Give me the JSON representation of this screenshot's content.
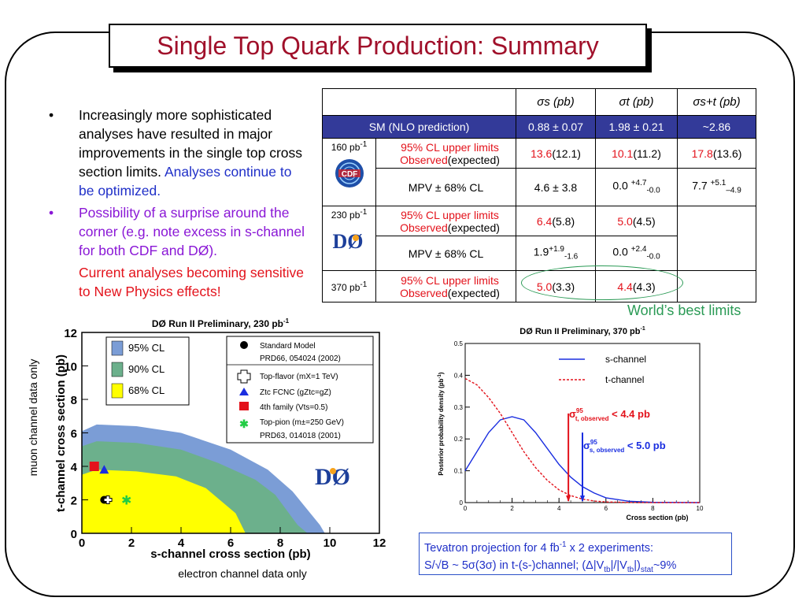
{
  "title": "Single Top Quark Production: Summary",
  "bullets": {
    "b1_black": "Increasingly more sophisticated analyses have resulted in major improvements in the single top cross section limits.",
    "b1_blue": "Analyses continue to be optimized.",
    "b2": "Possibility of a surprise around the corner (e.g. note excess in s-channel for both CDF and DØ).",
    "b3": "Current analyses becoming sensitive to New Physics effects!",
    "bullet_glyph": "•"
  },
  "table": {
    "headers": [
      "σs (pb)",
      "σt (pb)",
      "σs+t (pb)"
    ],
    "sm_label": "SM (NLO prediction)",
    "sm_values": [
      "0.88 ± 0.07",
      "1.98 ± 0.21",
      "~2.86"
    ],
    "limit_label_1": "95% CL  upper limits",
    "limit_label_obs": "Observed",
    "limit_label_exp": "(expected)",
    "mpv_label": "MPV ± 68% CL",
    "cdf": {
      "lumi": "160 pb",
      "lumi_exp": "-1",
      "logo": "CDF",
      "s_obs": "13.6",
      "s_exp": "(12.1)",
      "t_obs": "10.1",
      "t_exp": "(11.2)",
      "st_obs": "17.8",
      "st_exp": "(13.6)",
      "mpv_s": "4.6 ± 3.8",
      "mpv_t_base": "0.0 ",
      "mpv_t_up": "+4.7",
      "mpv_t_dn": "-0.0",
      "mpv_st_base": "7.7 ",
      "mpv_st_up": "+5.1",
      "mpv_st_dn": "–4.9"
    },
    "d0_230": {
      "lumi": "230 pb",
      "lumi_exp": "-1",
      "logo": "DØ",
      "s_obs": "6.4",
      "s_exp": "(5.8)",
      "t_obs": "5.0",
      "t_exp": "(4.5)",
      "mpv_s_base": "1.9",
      "mpv_s_up": "+1.9",
      "mpv_s_dn": "-1.6",
      "mpv_t_base": "0.0 ",
      "mpv_t_up": "+2.4",
      "mpv_t_dn": "-0.0"
    },
    "d0_370": {
      "lumi": "370 pb",
      "lumi_exp": "-1",
      "s_obs": "5.0",
      "s_exp": "(3.3)",
      "t_obs": "4.4",
      "t_exp": "(4.3)"
    }
  },
  "worlds_best": "World’s best limits",
  "left_plot": {
    "title": "DØ Run II Preliminary, 230 pb",
    "title_exp": "-1",
    "xlabel": "s-channel cross section (pb)",
    "ylabel": "t-channel cross section (pb)",
    "side_label": "muon channel data only",
    "bottom_label": "electron channel data only",
    "xticks": [
      "0",
      "2",
      "4",
      "6",
      "8",
      "10",
      "12"
    ],
    "yticks": [
      "0",
      "2",
      "4",
      "6",
      "8",
      "10",
      "12"
    ],
    "legend_cl": [
      "95% CL",
      "90% CL",
      "68% CL"
    ],
    "legend_models": [
      "Standard Model",
      "PRD66, 054024 (2002)",
      "Top-flavor  (mX=1 TeV)",
      "Ztc FCNC  (gZtc=gZ)",
      "4th family  (Vts=0.5)",
      "Top-pion  (m±=250 GeV)",
      "PRD63, 014018 (2001)"
    ],
    "logo": "DØ",
    "colors": {
      "cl95": "#7b9dd6",
      "cl90": "#6cb08c",
      "cl68": "#ffff00",
      "red": "#e3121b",
      "blue": "#1a2ee0",
      "green": "#22cc44"
    }
  },
  "chart_data": [
    {
      "type": "area",
      "title": "DØ Run II Preliminary, 230 pb-1",
      "xlabel": "s-channel cross section (pb)",
      "ylabel": "t-channel cross section (pb)",
      "xlim": [
        0,
        12
      ],
      "ylim": [
        0,
        12
      ],
      "series": [
        {
          "name": "95% CL",
          "x": [
            0,
            0.6,
            2.2,
            4,
            6,
            7.5,
            8.5,
            9.6,
            9.8
          ],
          "y": [
            6.1,
            6.5,
            6.4,
            6.0,
            5.0,
            3.8,
            2.5,
            0.5,
            0
          ]
        },
        {
          "name": "90% CL",
          "x": [
            0,
            0.6,
            2.2,
            4,
            5.5,
            7,
            7.8,
            8.7,
            9.1
          ],
          "y": [
            5.2,
            5.5,
            5.4,
            5.0,
            4.2,
            3.2,
            2.3,
            0.5,
            0
          ]
        },
        {
          "name": "68% CL",
          "x": [
            0,
            0.6,
            2.2,
            3.8,
            5,
            6.2,
            6.6
          ],
          "y": [
            3.5,
            3.8,
            3.7,
            3.4,
            2.7,
            1.2,
            0
          ]
        }
      ],
      "points": [
        {
          "name": "Standard Model",
          "x": 0.9,
          "y": 2.0
        },
        {
          "name": "Top-flavor  (mX=1 TeV)",
          "x": 1.05,
          "y": 2.0
        },
        {
          "name": "Ztc FCNC  (gZtc=gZ)",
          "x": 0.9,
          "y": 3.8
        },
        {
          "name": "4th family  (Vts=0.5)",
          "x": 0.5,
          "y": 4.0
        },
        {
          "name": "Top-pion  (m±=250 GeV)",
          "x": 1.8,
          "y": 2.0
        }
      ]
    },
    {
      "type": "line",
      "title": "DØ Run II Preliminary, 370 pb-1",
      "xlabel": "Cross section (pb)",
      "ylabel": "Posterior probability density (pb-1)",
      "xlim": [
        0,
        10
      ],
      "ylim": [
        0,
        0.5
      ],
      "xticks": [
        "0",
        "2",
        "4",
        "6",
        "8",
        "10"
      ],
      "yticks": [
        "0",
        "0.1",
        "0.2",
        "0.3",
        "0.4",
        "0.5"
      ],
      "series": [
        {
          "name": "s-channel",
          "x": [
            0,
            0.5,
            1,
            1.5,
            2,
            2.5,
            3,
            3.5,
            4,
            4.5,
            5,
            5.5,
            6,
            7,
            8,
            10
          ],
          "y": [
            0.1,
            0.16,
            0.22,
            0.26,
            0.27,
            0.26,
            0.22,
            0.17,
            0.12,
            0.08,
            0.05,
            0.03,
            0.015,
            0.004,
            0.001,
            0
          ]
        },
        {
          "name": "t-channel",
          "x": [
            0,
            0.5,
            1,
            1.5,
            2,
            2.5,
            3,
            3.5,
            4,
            4.5,
            5,
            5.5,
            6,
            7,
            8,
            10
          ],
          "y": [
            0.39,
            0.37,
            0.33,
            0.28,
            0.22,
            0.16,
            0.11,
            0.07,
            0.04,
            0.022,
            0.011,
            0.005,
            0.002,
            0.0005,
            0,
            0
          ]
        }
      ],
      "annotations": [
        {
          "text": "σ95t, observed < 4.4 pb",
          "x": 4.4
        },
        {
          "text": "σ95s, observed < 5.0 pb",
          "x": 5.0
        }
      ],
      "colors": {
        "s-channel": "#1a2ee0",
        "t-channel": "#e3121b"
      }
    }
  ],
  "right_plot": {
    "title": "DØ Run II Preliminary, 370 pb",
    "title_exp": "-1",
    "ylabel": "Posterior probability density (pb",
    "ylabel_exp": "-1",
    "xlabel": "Cross section (pb)",
    "legend_s": "s-channel",
    "legend_t": "t-channel",
    "ann_t_sym": "σ",
    "ann_t_sup": "95",
    "ann_t_sub": "t, observed",
    "ann_t_val": " < 4.4 pb",
    "ann_s_sym": "σ",
    "ann_s_sup": "95",
    "ann_s_sub": "s, observed",
    "ann_s_val": " < 5.0 pb"
  },
  "note": {
    "line1_a": "Tevatron projection for 4 fb",
    "line1_sup": "-1",
    "line1_b": " x 2 experiments:",
    "line2_a": "S/√B ~ 5σ(3σ) in t-(s-)channel; (Δ|V",
    "line2_sub1": "tb",
    "line2_b": "|/|V",
    "line2_sub2": "tb",
    "line2_c": "|)",
    "line2_sub3": "stat",
    "line2_d": "~9%"
  }
}
